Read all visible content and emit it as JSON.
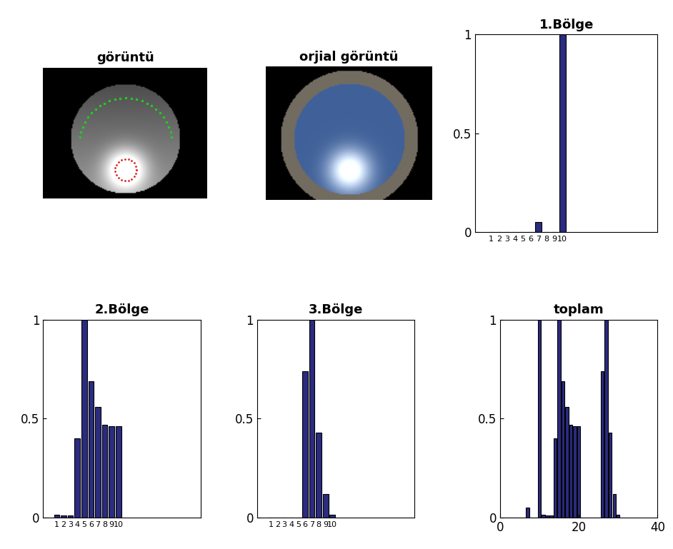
{
  "chart_data": [
    {
      "type": "image",
      "title": "görüntü"
    },
    {
      "type": "image",
      "title": "orjial görüntü"
    },
    {
      "type": "bar",
      "title": "1.Bölge",
      "color": "#2b2b7f",
      "x": [
        1,
        2,
        3,
        4,
        5,
        6,
        7,
        8,
        9,
        10
      ],
      "values": [
        0,
        0,
        0,
        0,
        0,
        0,
        0.05,
        0,
        0,
        1
      ],
      "xlim": [
        -1,
        22
      ],
      "xticks": [
        1,
        2,
        3,
        4,
        5,
        6,
        7,
        8,
        9,
        10
      ],
      "ylim": [
        0,
        1
      ],
      "yticks": [
        0,
        0.5,
        1
      ]
    },
    {
      "type": "bar",
      "title": "2.Bölge",
      "color": "#2b2b7f",
      "x": [
        1,
        2,
        3,
        4,
        5,
        6,
        7,
        8,
        9,
        10
      ],
      "values": [
        0.015,
        0.01,
        0.01,
        0.4,
        1,
        0.69,
        0.56,
        0.47,
        0.46,
        0.46
      ],
      "xlim": [
        -1,
        22
      ],
      "xticks": [
        1,
        2,
        3,
        4,
        5,
        6,
        7,
        8,
        9,
        10
      ],
      "ylim": [
        0,
        1
      ],
      "yticks": [
        0,
        0.5,
        1
      ]
    },
    {
      "type": "bar",
      "title": "3.Bölge",
      "color": "#2b2b7f",
      "x": [
        1,
        2,
        3,
        4,
        5,
        6,
        7,
        8,
        9,
        10
      ],
      "values": [
        0,
        0,
        0,
        0,
        0,
        0.74,
        1,
        0.43,
        0.12,
        0.015
      ],
      "xlim": [
        -1,
        22
      ],
      "xticks": [
        1,
        2,
        3,
        4,
        5,
        6,
        7,
        8,
        9,
        10
      ],
      "ylim": [
        0,
        1
      ],
      "yticks": [
        0,
        0.5,
        1
      ]
    },
    {
      "type": "bar",
      "title": "toplam",
      "color": "#2b2b7f",
      "x": [
        1,
        2,
        3,
        4,
        5,
        6,
        7,
        8,
        9,
        10,
        11,
        12,
        13,
        14,
        15,
        16,
        17,
        18,
        19,
        20,
        21,
        22,
        23,
        24,
        25,
        26,
        27,
        28,
        29,
        30
      ],
      "values": [
        0,
        0,
        0,
        0,
        0,
        0,
        0.05,
        0,
        0,
        1,
        0.015,
        0.01,
        0.01,
        0.4,
        1,
        0.69,
        0.56,
        0.47,
        0.46,
        0.46,
        0,
        0,
        0,
        0,
        0,
        0.74,
        1,
        0.43,
        0.12,
        0.015
      ],
      "xlim": [
        0,
        40
      ],
      "xticks": [
        0,
        20,
        40
      ],
      "ylim": [
        0,
        1
      ],
      "yticks": [
        0,
        0.5,
        1
      ]
    }
  ]
}
